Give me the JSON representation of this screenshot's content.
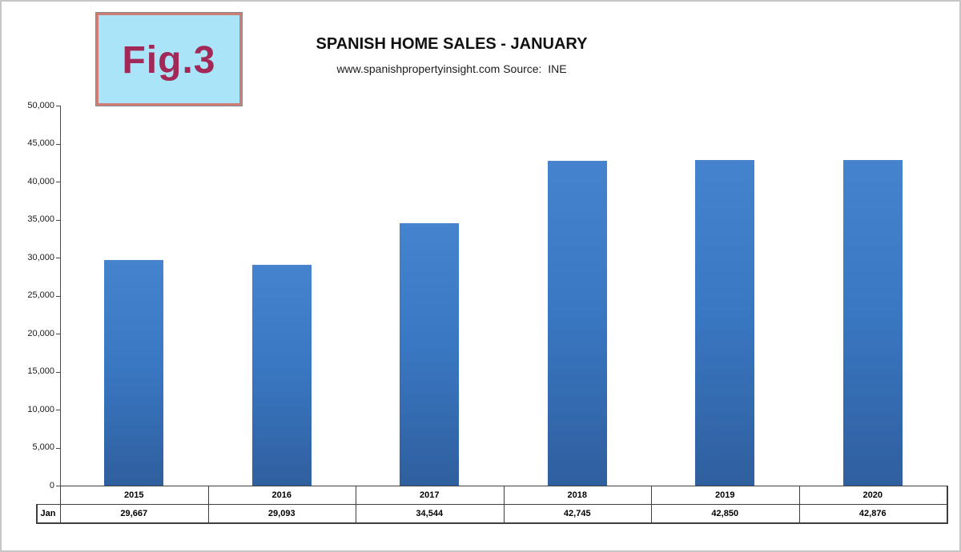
{
  "figure_label": "Fig.3",
  "header": {
    "title": "SPANISH HOME SALES - JANUARY",
    "subtitle": "www.spanishpropertyinsight.com Source:  INE"
  },
  "chart_data": {
    "type": "bar",
    "title": "SPANISH HOME SALES - JANUARY",
    "subtitle": "www.spanishpropertyinsight.com Source: INE",
    "categories": [
      "2015",
      "2016",
      "2017",
      "2018",
      "2019",
      "2020"
    ],
    "series": [
      {
        "name": "Jan",
        "values": [
          29667,
          29093,
          34544,
          42745,
          42850,
          42876
        ]
      }
    ],
    "value_labels": [
      "29,667",
      "29,093",
      "34,544",
      "42,745",
      "42,850",
      "42,876"
    ],
    "xlabel": "",
    "ylabel": "",
    "ylim": [
      0,
      50000
    ],
    "ytick_step": 5000,
    "ytick_labels": [
      "0",
      "5,000",
      "10,000",
      "15,000",
      "20,000",
      "25,000",
      "30,000",
      "35,000",
      "40,000",
      "45,000",
      "50,000"
    ],
    "grid": false,
    "legend_position": "none",
    "data_table_below_axis": true,
    "bar_color_top": "#4583cf",
    "bar_color_bottom": "#2f5f9e"
  },
  "colors": {
    "figure_box_background": "#a9e4f8",
    "figure_box_border": "#cf7d74",
    "figure_label_text": "#a22957",
    "axis_line": "#4a4a4a",
    "table_border": "#3f3f3f",
    "page_border": "#c6c6c6"
  }
}
